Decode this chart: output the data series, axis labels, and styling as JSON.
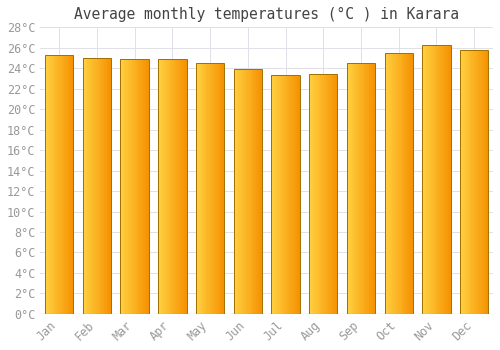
{
  "title": "Average monthly temperatures (°C ) in Karara",
  "months": [
    "Jan",
    "Feb",
    "Mar",
    "Apr",
    "May",
    "Jun",
    "Jul",
    "Aug",
    "Sep",
    "Oct",
    "Nov",
    "Dec"
  ],
  "values": [
    25.3,
    25.0,
    24.9,
    24.9,
    24.5,
    23.9,
    23.3,
    23.4,
    24.5,
    25.5,
    26.3,
    25.8
  ],
  "bar_color_left": "#FFD040",
  "bar_color_right": "#F59000",
  "bar_color_edge": "#A07000",
  "bar_width": 0.75,
  "ylim": [
    0,
    28
  ],
  "ytick_step": 2,
  "background_color": "#FFFFFF",
  "grid_color": "#E0E0E8",
  "title_fontsize": 10.5,
  "tick_fontsize": 8.5,
  "tick_color": "#999999",
  "font_family": "monospace"
}
